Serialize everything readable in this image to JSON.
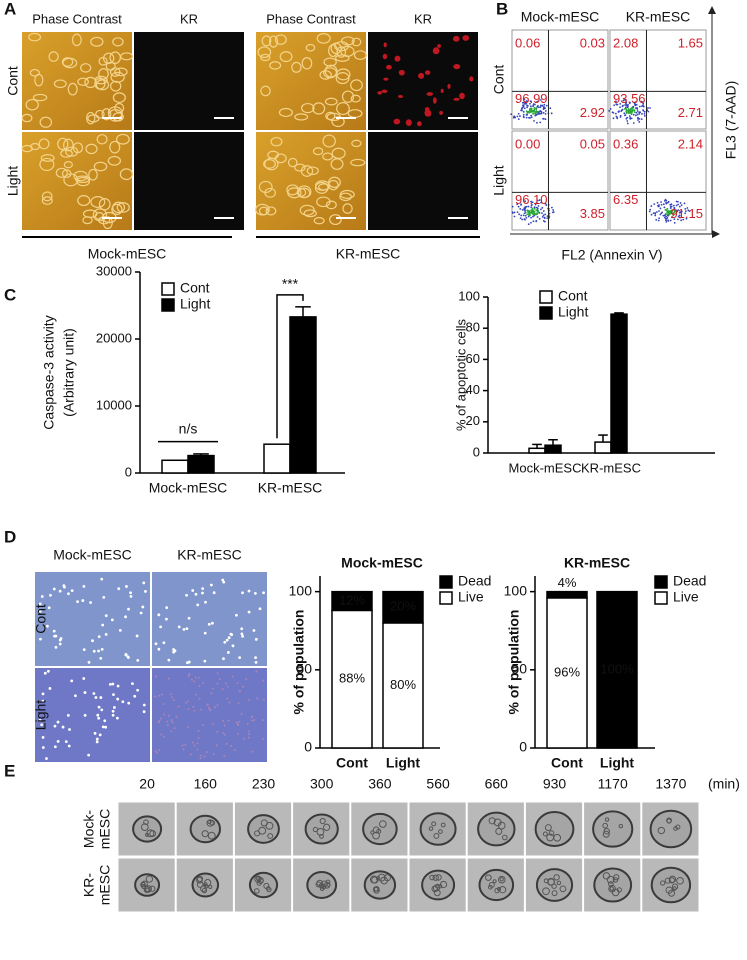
{
  "panel_labels": [
    "A",
    "B",
    "C",
    "D",
    "E"
  ],
  "panel_a": {
    "columns": [
      "Phase Contrast",
      "KR",
      "Phase Contrast",
      "KR"
    ],
    "rows": [
      "Cont",
      "Light"
    ],
    "groups": [
      "Mock-mESC",
      "KR-mESC"
    ]
  },
  "panel_b": {
    "columns": [
      "Mock-mESC",
      "KR-mESC"
    ],
    "rows": [
      "Cont",
      "Light"
    ],
    "y_axis": "FL3 (7-AAD)",
    "x_axis": "FL2 (Annexin V)",
    "quadrants": [
      [
        [
          "0.06",
          "0.03",
          "96.99",
          "2.92"
        ],
        [
          "2.08",
          "1.65",
          "93.56",
          "2.71"
        ]
      ],
      [
        [
          "0.00",
          "0.05",
          "96.10",
          "3.85"
        ],
        [
          "0.36",
          "2.14",
          "6.35",
          "91.15"
        ]
      ]
    ]
  },
  "panel_d": {
    "columns": [
      "Mock-mESC",
      "KR-mESC"
    ],
    "rows": [
      "Cont",
      "Light"
    ]
  },
  "panel_e": {
    "times": [
      20,
      160,
      230,
      300,
      360,
      560,
      660,
      930,
      1170,
      1370
    ],
    "unit": "(min)",
    "rows": [
      [
        "Mock-",
        "mESC"
      ],
      [
        "KR-",
        "mESC"
      ]
    ]
  },
  "chart_data": [
    {
      "type": "bar",
      "ylabel": [
        "Caspase-3 activity",
        "(Arbitrary unit)"
      ],
      "categories": [
        "Mock-mESC",
        "KR-mESC"
      ],
      "series": [
        {
          "name": "Cont",
          "color": "#ffffff",
          "values": [
            1900,
            4300
          ],
          "errors": [
            0,
            0
          ]
        },
        {
          "name": "Light",
          "color": "#000000",
          "values": [
            2600,
            23300
          ],
          "errors": [
            250,
            1500
          ]
        }
      ],
      "ylim": [
        0,
        30000
      ],
      "yticks": [
        0,
        10000,
        20000,
        30000
      ],
      "annotations": [
        "n/s",
        "***"
      ]
    },
    {
      "type": "bar",
      "ylabel": [
        "% of apoptotic cells"
      ],
      "categories": [
        "Mock-mESC",
        "KR-mESC"
      ],
      "series": [
        {
          "name": "Cont",
          "color": "#ffffff",
          "values": [
            3,
            7
          ],
          "errors": [
            2.5,
            4.5
          ]
        },
        {
          "name": "Light",
          "color": "#000000",
          "values": [
            5,
            89
          ],
          "errors": [
            3.5,
            0.8
          ]
        }
      ],
      "ylim": [
        0,
        100
      ],
      "yticks": [
        0,
        20,
        40,
        60,
        80,
        100
      ]
    },
    {
      "type": "bar",
      "stacked": true,
      "title": "Mock-mESC",
      "ylabel": [
        "% of population"
      ],
      "categories": [
        "Cont",
        "Light"
      ],
      "series": [
        {
          "name": "Live",
          "color": "#ffffff",
          "values": [
            88,
            80
          ],
          "value_labels": [
            "88%",
            "80%"
          ]
        },
        {
          "name": "Dead",
          "color": "#000000",
          "values": [
            12,
            20
          ],
          "value_labels": [
            "12%",
            "20%"
          ]
        }
      ],
      "ylim": [
        0,
        110
      ],
      "yticks": [
        0,
        50,
        100
      ]
    },
    {
      "type": "bar",
      "stacked": true,
      "title": "KR-mESC",
      "ylabel": [
        "% of population"
      ],
      "categories": [
        "Cont",
        "Light"
      ],
      "series": [
        {
          "name": "Live",
          "color": "#ffffff",
          "values": [
            96,
            0
          ],
          "value_labels": [
            "96%",
            null
          ]
        },
        {
          "name": "Dead",
          "color": "#000000",
          "values": [
            4,
            100
          ],
          "value_labels": [
            "4%",
            "100%"
          ]
        }
      ],
      "ylim": [
        0,
        110
      ],
      "yticks": [
        0,
        50,
        100
      ]
    }
  ]
}
